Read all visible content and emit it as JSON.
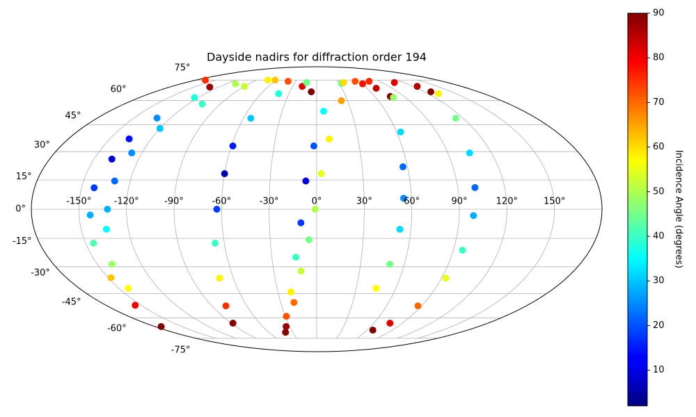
{
  "chart_data": {
    "type": "scatter",
    "projection": "mollweide",
    "title": "Dayside nadirs for diffraction order 194",
    "grid": true,
    "xlim": [
      -180,
      180
    ],
    "ylim": [
      -90,
      90
    ],
    "xticks": [
      {
        "value": -150,
        "label": "-150°"
      },
      {
        "value": -120,
        "label": "-120°"
      },
      {
        "value": -90,
        "label": "-90°"
      },
      {
        "value": -60,
        "label": "-60°"
      },
      {
        "value": -30,
        "label": "-30°"
      },
      {
        "value": 0,
        "label": "0°"
      },
      {
        "value": 30,
        "label": "30°"
      },
      {
        "value": 60,
        "label": "60°"
      },
      {
        "value": 90,
        "label": "90°"
      },
      {
        "value": 120,
        "label": "120°"
      },
      {
        "value": 150,
        "label": "150°"
      }
    ],
    "yticks": [
      {
        "value": -75,
        "label": "-75°"
      },
      {
        "value": -60,
        "label": "-60°"
      },
      {
        "value": -45,
        "label": "-45°"
      },
      {
        "value": -30,
        "label": "-30°"
      },
      {
        "value": -15,
        "label": "-15°"
      },
      {
        "value": 0,
        "label": "0°"
      },
      {
        "value": 15,
        "label": "15°"
      },
      {
        "value": 30,
        "label": "30°"
      },
      {
        "value": 45,
        "label": "45°"
      },
      {
        "value": 60,
        "label": "60°"
      },
      {
        "value": 75,
        "label": "75°"
      }
    ],
    "colorbar": {
      "label": "Incidence Angle (degrees)",
      "colormap": "jet",
      "lim": [
        2,
        90
      ],
      "ticks": [
        10,
        20,
        30,
        40,
        50,
        60,
        70,
        80,
        90
      ]
    },
    "series": [
      {
        "x": [
          -173,
          -155,
          -148,
          -145,
          -143,
          -142,
          -138,
          -136,
          -131,
          -124,
          -108,
          -73,
          -41,
          -18,
          -6
        ],
        "y": [
          -66,
          -52,
          -36,
          -17.5,
          -3,
          11,
          26,
          37,
          49,
          62,
          72,
          75,
          74,
          70,
          66
        ],
        "values": [
          90,
          80,
          62,
          42,
          28,
          18,
          10,
          14,
          25,
          38,
          50,
          58,
          72,
          82,
          90
        ]
      },
      {
        "x": [
          -143,
          -140,
          -134,
          -132,
          -130,
          -127,
          -120,
          -107,
          -90,
          -62
        ],
        "y": [
          -42,
          -28.6,
          -10.3,
          0,
          14.5,
          29.3,
          42.9,
          57.7,
          70,
          75
        ],
        "values": [
          57,
          48,
          35,
          28,
          22,
          25,
          30,
          40,
          52,
          62
        ]
      },
      {
        "x": [
          -14,
          -41,
          -54,
          -59,
          -60,
          -63,
          -66,
          -70,
          -78,
          -88
        ],
        "y": [
          73,
          64.7,
          48.9,
          33.1,
          18.3,
          0,
          -17.5,
          -36.2,
          -52.4,
          -63.6
        ],
        "values": [
          45,
          38,
          30,
          15,
          6,
          18,
          40,
          58,
          75,
          90
        ]
      },
      {
        "x": [
          33,
          6,
          -2,
          -7,
          -10,
          -14,
          -20,
          -29,
          -39
        ],
        "y": [
          72.3,
          53.2,
          33.1,
          14.5,
          -7,
          -24.9,
          -44.1,
          -59,
          -70.2
        ],
        "values": [
          45,
          35,
          20,
          10,
          18,
          40,
          58,
          72,
          90
        ]
      },
      {
        "x": [
          55,
          24,
          9,
          3,
          -1,
          -5,
          -11,
          -19,
          -34
        ],
        "y": [
          74,
          59.9,
          36.9,
          18.3,
          0,
          -15.7,
          -32.3,
          -50.3,
          -66
        ],
        "values": [
          72,
          65,
          58,
          55,
          50,
          45,
          52,
          70,
          88
        ]
      },
      {
        "x": [
          37,
          75,
          107,
          125,
          127
        ],
        "y": [
          73,
          74,
          73,
          70,
          66
        ],
        "values": [
          60,
          76,
          82,
          86,
          90
        ]
      },
      {
        "x": [
          61,
          71,
          76
        ],
        "y": [
          72,
          68.6,
          62.8
        ],
        "values": [
          78,
          84,
          90
        ]
      },
      {
        "x": [
          78,
          63,
          57,
          55,
          53,
          50,
          45
        ],
        "y": [
          62.1,
          40.9,
          21.9,
          5.6,
          -10.3,
          -28.6,
          -42
        ],
        "values": [
          48,
          32,
          22,
          25,
          32,
          45,
          57
        ]
      },
      {
        "x": [
          131,
          114,
          105,
          101,
          99,
          96,
          93,
          87,
          77,
          67
        ],
        "y": [
          64.7,
          48.9,
          29.3,
          11.1,
          -3.3,
          -21.2,
          -36.2,
          -52.4,
          -63.6,
          -68.6
        ],
        "values": [
          58,
          45,
          32,
          22,
          28,
          40,
          55,
          70,
          82,
          90
        ]
      },
      {
        "x": [
          -166,
          -131
        ],
        "y": [
          75,
          69.5
        ],
        "values": [
          75,
          88
        ]
      }
    ]
  }
}
